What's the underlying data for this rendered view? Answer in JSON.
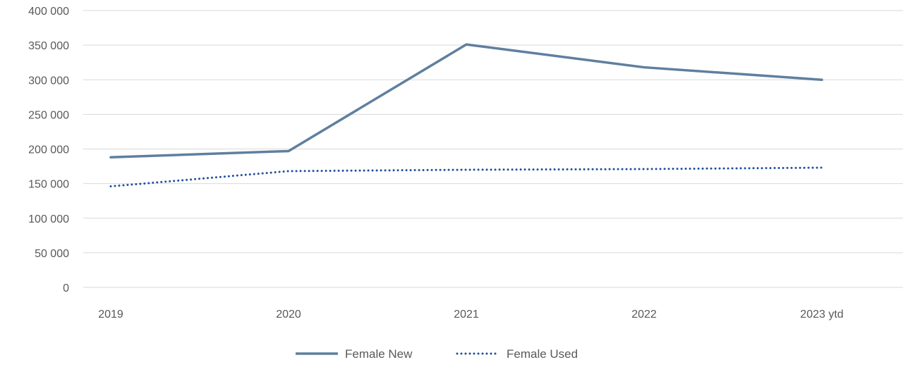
{
  "chart_data": {
    "type": "line",
    "categories": [
      "2019",
      "2020",
      "2021",
      "2022",
      "2023 ytd"
    ],
    "y_ticks": [
      "0",
      "50 000",
      "100 000",
      "150 000",
      "200 000",
      "250 000",
      "300 000",
      "350 000",
      "400 000"
    ],
    "ylim": [
      0,
      400000
    ],
    "grid": true,
    "legend_position": "bottom",
    "series": [
      {
        "name": "Female New",
        "values": [
          188000,
          197000,
          351000,
          318000,
          300000
        ],
        "color": "#5f7f9f",
        "style": "solid"
      },
      {
        "name": "Female Used",
        "values": [
          146000,
          168000,
          170000,
          171000,
          173000
        ],
        "color": "#1f4e9e",
        "style": "dotted"
      }
    ]
  }
}
